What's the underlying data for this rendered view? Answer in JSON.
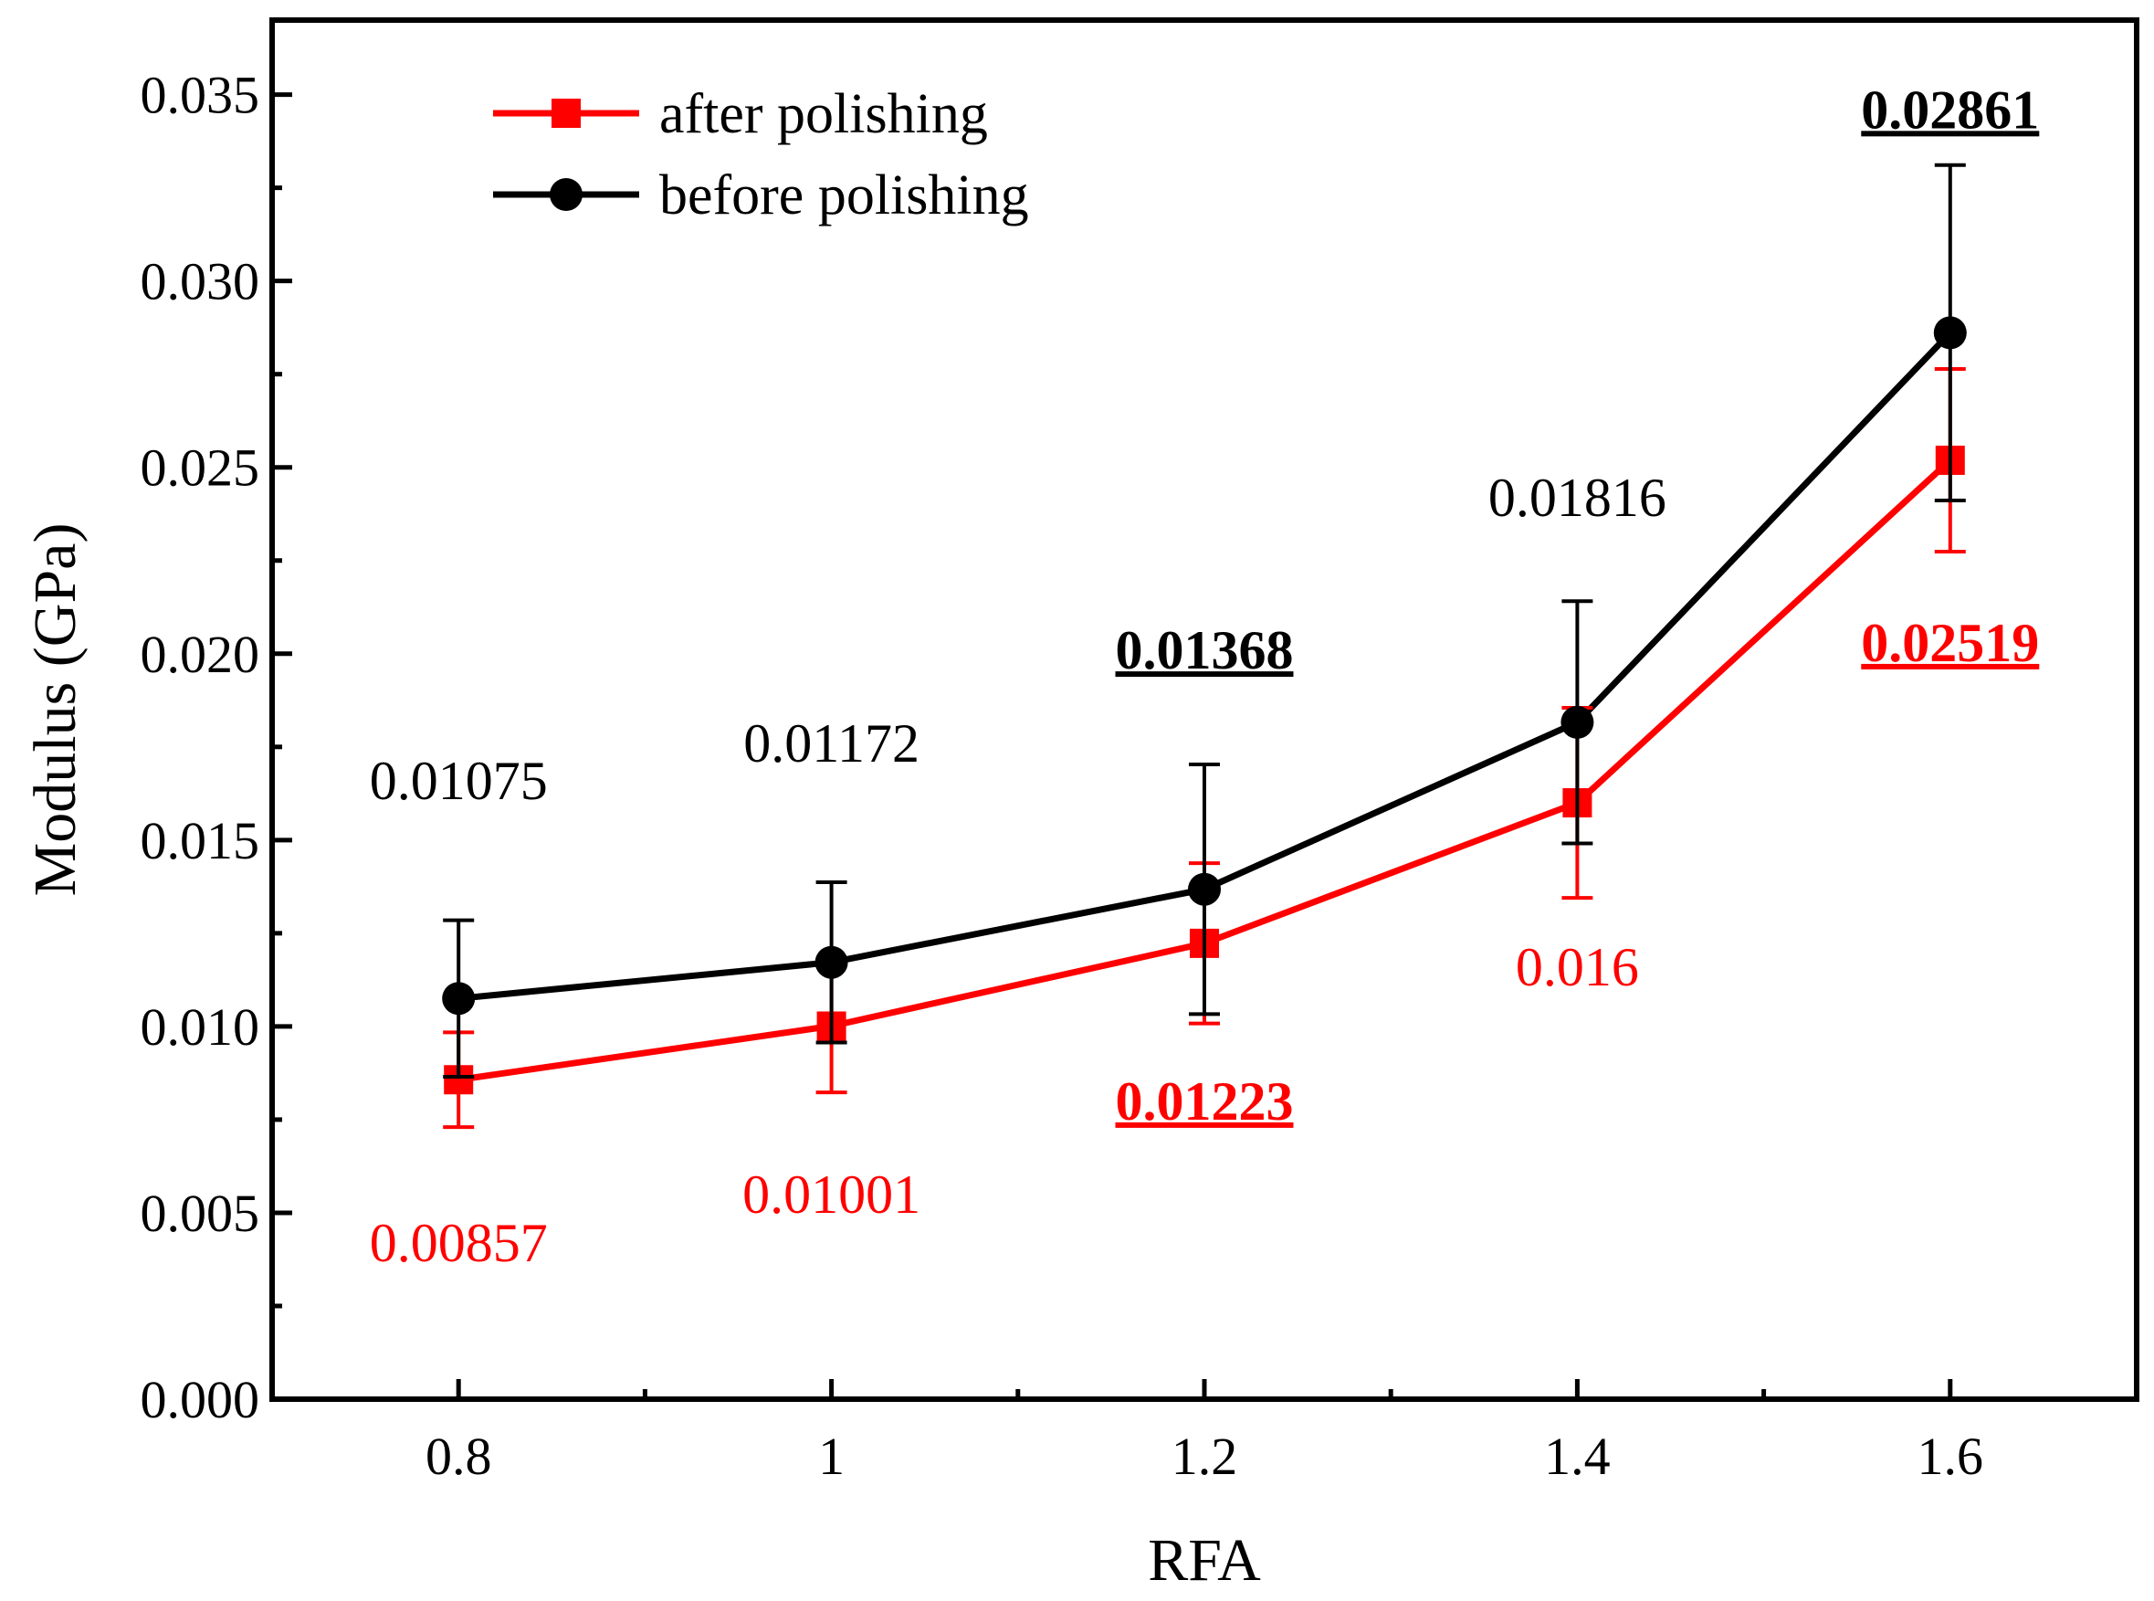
{
  "chart_data": {
    "type": "line",
    "xlabel": "RFA",
    "ylabel": "Modulus (GPa)",
    "xlim": [
      0.7,
      1.7
    ],
    "ylim": [
      0.0,
      0.037
    ],
    "x_ticks": [
      0.8,
      1.0,
      1.2,
      1.4,
      1.6
    ],
    "x_tick_labels": [
      "0.8",
      "1",
      "1.2",
      "1.4",
      "1.6"
    ],
    "y_ticks": [
      0.0,
      0.005,
      0.01,
      0.015,
      0.02,
      0.025,
      0.03,
      0.035
    ],
    "y_tick_labels": [
      "0.000",
      "0.005",
      "0.010",
      "0.015",
      "0.020",
      "0.025",
      "0.030",
      "0.035"
    ],
    "legend_position": "top-left",
    "grid": false,
    "series": [
      {
        "name": "after polishing",
        "color": "#ff0000",
        "marker": "square",
        "x": [
          0.8,
          1.0,
          1.2,
          1.4,
          1.6
        ],
        "values": [
          0.00857,
          0.01001,
          0.01223,
          0.016,
          0.02519
        ],
        "error": [
          0.00127,
          0.00178,
          0.00215,
          0.00255,
          0.00245
        ],
        "labels": [
          "0.00857",
          "0.01001",
          "0.01223",
          "0.016",
          "0.02519"
        ],
        "label_bold": [
          false,
          false,
          true,
          false,
          true
        ],
        "label_position": "below",
        "label_y": [
          0.0037,
          0.005,
          0.0075,
          0.0111,
          0.0198
        ]
      },
      {
        "name": "before polishing",
        "color": "#000000",
        "marker": "circle",
        "x": [
          0.8,
          1.0,
          1.2,
          1.4,
          1.6
        ],
        "values": [
          0.01075,
          0.01172,
          0.01368,
          0.01816,
          0.02861
        ],
        "error": [
          0.0021,
          0.00215,
          0.00335,
          0.00325,
          0.0045
        ],
        "labels": [
          "0.01075",
          "0.01172",
          "0.01368",
          "0.01816",
          "0.02861"
        ],
        "label_bold": [
          false,
          false,
          true,
          false,
          true
        ],
        "label_position": "above",
        "label_y": [
          0.0161,
          0.0171,
          0.0196,
          0.0237,
          0.0341
        ]
      }
    ]
  }
}
